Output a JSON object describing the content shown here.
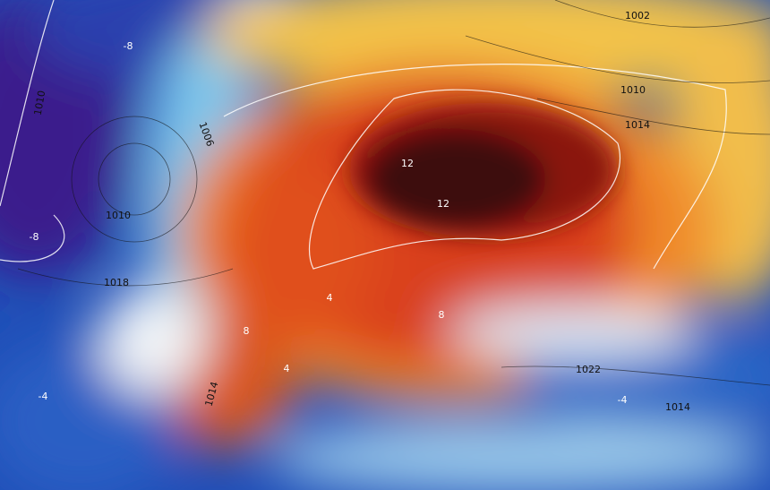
{
  "isobar_labels": [
    "1002",
    "1010",
    "1014",
    "1006",
    "1010",
    "1018",
    "1010",
    "1022",
    "1014",
    "1014"
  ],
  "isotherm_labels": [
    "-8",
    "-8",
    "12",
    "12",
    "8",
    "8",
    "4",
    "4",
    "-4",
    "-4"
  ]
}
